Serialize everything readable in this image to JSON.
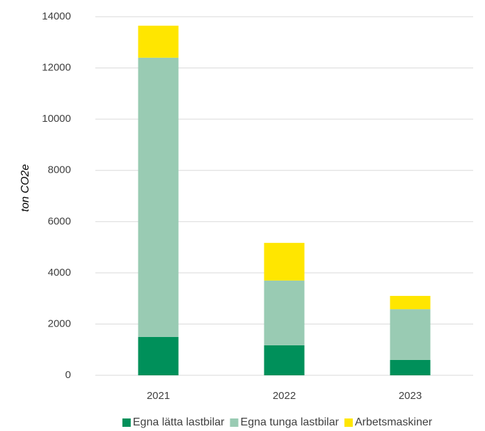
{
  "chart_data": {
    "type": "stacked_bar",
    "y_label": "ton CO2e",
    "categories": [
      "2021",
      "2022",
      "2023"
    ],
    "series": [
      {
        "name": "Egna lätta lastbilar",
        "color": "#00905a",
        "values": [
          1500,
          1170,
          600
        ]
      },
      {
        "name": "Egna tunga lastbilar",
        "color": "#99cbb3",
        "values": [
          10900,
          2530,
          1980
        ]
      },
      {
        "name": "Arbetsmaskiner",
        "color": "#ffe600",
        "values": [
          1250,
          1470,
          520
        ]
      }
    ],
    "ylim": [
      0,
      14000
    ],
    "yticks": [
      0,
      2000,
      4000,
      6000,
      8000,
      10000,
      12000,
      14000
    ],
    "grid": true,
    "legend": "bottom"
  }
}
